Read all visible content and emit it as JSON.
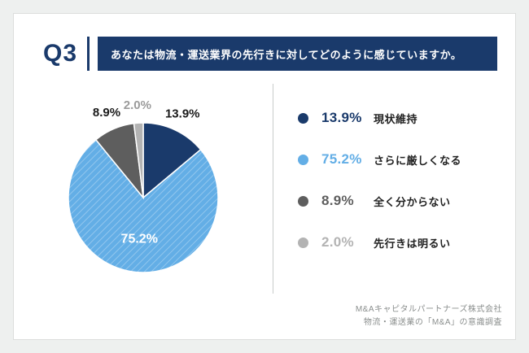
{
  "page": {
    "question_number": "Q3",
    "question_text": "あなたは物流・運送業界の先行きに対してどのように感じていますか。",
    "footer_line1": "M&Aキャピタルパートナーズ株式会社",
    "footer_line2": "物流・運送業の「M&A」の意識調査"
  },
  "colors": {
    "navy": "#1a3a6b",
    "light_blue": "#63aee6",
    "dark_gray": "#5e5e5e",
    "light_gray": "#b3b3b3",
    "divider_gray": "#c9cccb"
  },
  "chart_data": {
    "type": "pie",
    "labels": [
      "現状維持",
      "さらに厳しくなる",
      "全く分からない",
      "先行きは明るい"
    ],
    "values": [
      13.9,
      75.2,
      8.9,
      2.0
    ],
    "value_labels": [
      "13.9%",
      "75.2%",
      "8.9%",
      "2.0%"
    ],
    "colors": [
      "#1a3a6b",
      "#63aee6",
      "#5e5e5e",
      "#b3b3b3"
    ],
    "start_angle_deg": 0,
    "direction": "clockwise",
    "label_placement": [
      "outside",
      "inside",
      "outside",
      "outside"
    ],
    "pie_label_colors": [
      "#1b1b1b",
      "#ffffff",
      "#1b1b1b",
      "#9b9b9b"
    ],
    "pattern": [
      false,
      true,
      false,
      false
    ],
    "legend_position": "right"
  }
}
